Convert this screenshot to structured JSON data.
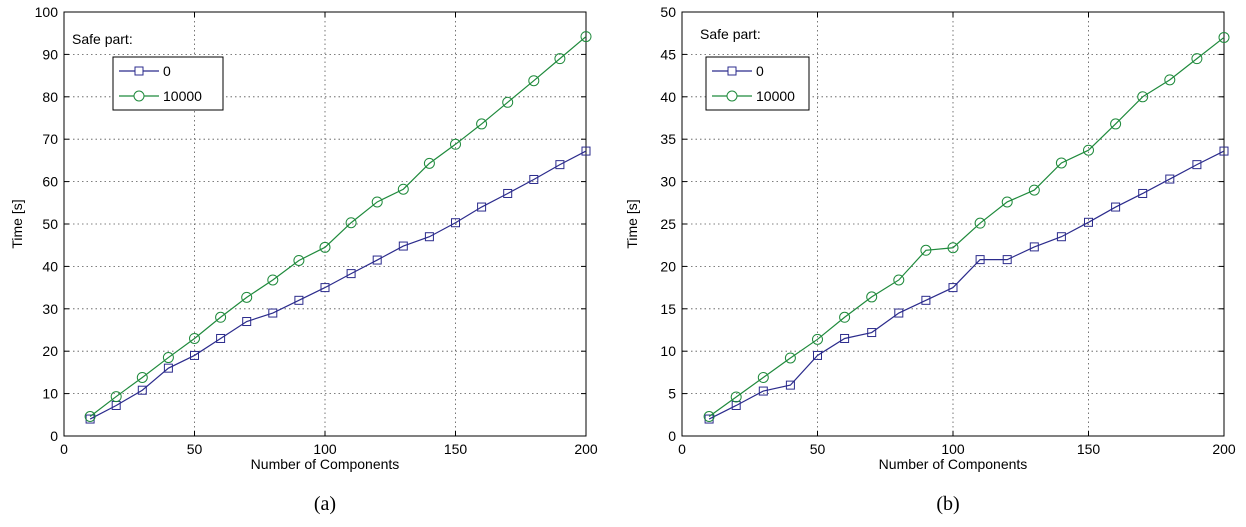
{
  "chart_data": [
    {
      "type": "line",
      "caption": "(a)",
      "xlabel": "Number of Components",
      "ylabel": "Time [s]",
      "xlim": [
        0,
        200
      ],
      "ylim": [
        0,
        100
      ],
      "xticks": [
        0,
        50,
        100,
        150,
        200
      ],
      "yticks": [
        0,
        10,
        20,
        30,
        40,
        50,
        60,
        70,
        80,
        90,
        100
      ],
      "grid": true,
      "legend_title": "Safe part:",
      "legend_position": "top-left",
      "x": [
        10,
        20,
        30,
        40,
        50,
        60,
        70,
        80,
        90,
        100,
        110,
        120,
        130,
        140,
        150,
        160,
        170,
        180,
        190,
        200
      ],
      "series": [
        {
          "name": "0",
          "marker": "square",
          "color": "#2b2b8c",
          "values": [
            4,
            7.2,
            10.8,
            16,
            19,
            23,
            27,
            29,
            32,
            35,
            38.3,
            41.5,
            44.8,
            47,
            50.3,
            54,
            57.2,
            60.5,
            64,
            67.2
          ]
        },
        {
          "name": "10000",
          "marker": "circle",
          "color": "#1f8a3c",
          "values": [
            4.6,
            9.3,
            13.8,
            18.5,
            23,
            28,
            32.7,
            36.8,
            41.4,
            44.5,
            50.3,
            55.2,
            58.2,
            64.3,
            68.8,
            73.6,
            78.7,
            83.8,
            89,
            94.2
          ]
        }
      ]
    },
    {
      "type": "line",
      "caption": "(b)",
      "xlabel": "Number of Components",
      "ylabel": "Time [s]",
      "xlim": [
        0,
        200
      ],
      "ylim": [
        0,
        50
      ],
      "xticks": [
        0,
        50,
        100,
        150,
        200
      ],
      "yticks": [
        0,
        5,
        10,
        15,
        20,
        25,
        30,
        35,
        40,
        45,
        50
      ],
      "grid": true,
      "legend_title": "Safe part:",
      "legend_position": "top-left",
      "x": [
        10,
        20,
        30,
        40,
        50,
        60,
        70,
        80,
        90,
        100,
        110,
        120,
        130,
        140,
        150,
        160,
        170,
        180,
        190,
        200
      ],
      "series": [
        {
          "name": "0",
          "marker": "square",
          "color": "#2b2b8c",
          "values": [
            2,
            3.6,
            5.3,
            6,
            9.5,
            11.5,
            12.2,
            14.5,
            16,
            17.5,
            20.8,
            20.8,
            22.3,
            23.5,
            25.2,
            27,
            28.6,
            30.3,
            32,
            33.6
          ]
        },
        {
          "name": "10000",
          "marker": "circle",
          "color": "#1f8a3c",
          "values": [
            2.3,
            4.6,
            6.9,
            9.2,
            11.4,
            14,
            16.4,
            18.4,
            21.9,
            22.2,
            25.1,
            27.6,
            29,
            32.2,
            33.7,
            36.8,
            40,
            42,
            44.5,
            47
          ]
        }
      ]
    }
  ]
}
